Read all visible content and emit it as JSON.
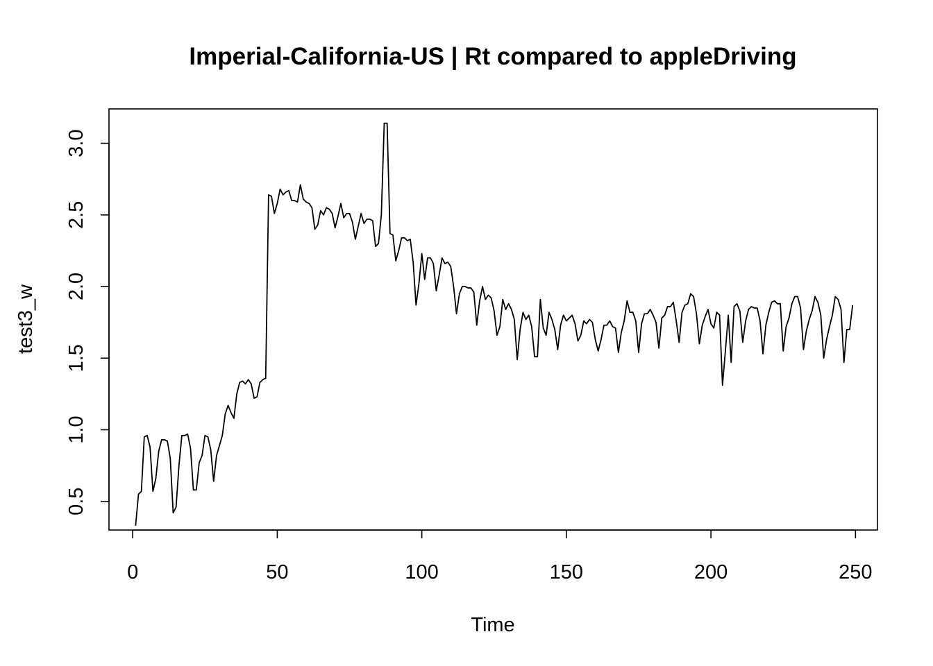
{
  "chart_data": {
    "type": "line",
    "title": "Imperial-California-US | Rt compared to appleDriving",
    "xlabel": "Time",
    "ylabel": "test3_w",
    "xlim": [
      -8.2,
      257.6
    ],
    "ylim": [
      0.3,
      3.24
    ],
    "x_ticks": [
      0,
      50,
      100,
      150,
      200,
      250
    ],
    "x_tick_labels": [
      "0",
      "50",
      "100",
      "150",
      "200",
      "250"
    ],
    "y_ticks": [
      0.5,
      1.0,
      1.5,
      2.0,
      2.5,
      3.0
    ],
    "y_tick_labels": [
      "0.5",
      "1.0",
      "1.5",
      "2.0",
      "2.5",
      "3.0"
    ],
    "grid": false,
    "line_color": "#000000",
    "x_start": 1,
    "values": [
      0.33,
      0.55,
      0.57,
      0.95,
      0.96,
      0.88,
      0.57,
      0.66,
      0.85,
      0.93,
      0.93,
      0.92,
      0.8,
      0.42,
      0.46,
      0.75,
      0.96,
      0.96,
      0.97,
      0.87,
      0.58,
      0.58,
      0.77,
      0.82,
      0.96,
      0.95,
      0.86,
      0.64,
      0.82,
      0.89,
      0.96,
      1.11,
      1.17,
      1.12,
      1.08,
      1.25,
      1.33,
      1.34,
      1.32,
      1.35,
      1.32,
      1.22,
      1.23,
      1.33,
      1.35,
      1.36,
      2.64,
      2.63,
      2.51,
      2.58,
      2.68,
      2.64,
      2.66,
      2.67,
      2.6,
      2.6,
      2.59,
      2.71,
      2.61,
      2.59,
      2.58,
      2.55,
      2.4,
      2.43,
      2.53,
      2.5,
      2.55,
      2.54,
      2.51,
      2.41,
      2.49,
      2.58,
      2.48,
      2.51,
      2.51,
      2.45,
      2.33,
      2.42,
      2.51,
      2.44,
      2.47,
      2.47,
      2.46,
      2.28,
      2.3,
      2.5,
      3.14,
      3.14,
      2.37,
      2.36,
      2.18,
      2.25,
      2.34,
      2.34,
      2.32,
      2.33,
      2.17,
      1.87,
      2.02,
      2.23,
      2.05,
      2.2,
      2.2,
      2.16,
      1.97,
      2.08,
      2.2,
      2.16,
      2.17,
      2.14,
      2.0,
      1.81,
      1.95,
      2.0,
      2.0,
      1.99,
      1.99,
      1.96,
      1.73,
      1.9,
      2.0,
      1.91,
      1.94,
      1.92,
      1.83,
      1.66,
      1.72,
      1.91,
      1.84,
      1.88,
      1.84,
      1.77,
      1.49,
      1.7,
      1.82,
      1.77,
      1.8,
      1.72,
      1.51,
      1.51,
      1.91,
      1.71,
      1.66,
      1.82,
      1.77,
      1.7,
      1.56,
      1.73,
      1.8,
      1.76,
      1.78,
      1.8,
      1.74,
      1.62,
      1.66,
      1.76,
      1.74,
      1.77,
      1.75,
      1.63,
      1.55,
      1.63,
      1.73,
      1.73,
      1.76,
      1.72,
      1.71,
      1.54,
      1.68,
      1.76,
      1.9,
      1.82,
      1.82,
      1.76,
      1.54,
      1.74,
      1.81,
      1.81,
      1.84,
      1.8,
      1.75,
      1.57,
      1.78,
      1.8,
      1.86,
      1.86,
      1.89,
      1.76,
      1.61,
      1.82,
      1.87,
      1.88,
      1.95,
      1.93,
      1.81,
      1.6,
      1.73,
      1.79,
      1.84,
      1.74,
      1.71,
      1.82,
      1.8,
      1.31,
      1.55,
      1.8,
      1.47,
      1.86,
      1.88,
      1.83,
      1.61,
      1.76,
      1.84,
      1.86,
      1.85,
      1.85,
      1.76,
      1.53,
      1.73,
      1.82,
      1.89,
      1.9,
      1.88,
      1.88,
      1.55,
      1.72,
      1.78,
      1.88,
      1.93,
      1.93,
      1.85,
      1.56,
      1.69,
      1.77,
      1.83,
      1.93,
      1.89,
      1.8,
      1.5,
      1.63,
      1.72,
      1.8,
      1.93,
      1.91,
      1.84,
      1.47,
      1.7,
      1.7,
      1.87
    ]
  }
}
